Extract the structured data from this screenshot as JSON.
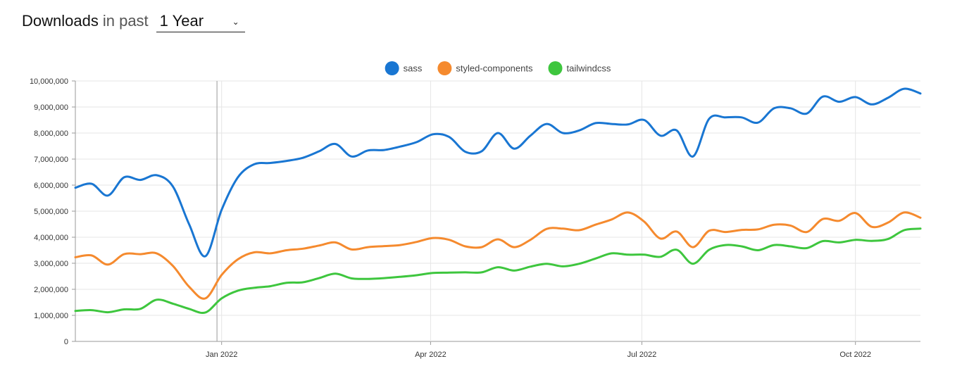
{
  "header": {
    "title": "Downloads",
    "subtitle": "in past",
    "period_selected": "1 Year"
  },
  "chart_data": {
    "type": "line",
    "title": "",
    "xlabel": "",
    "ylabel": "",
    "ylim": [
      0,
      10000000
    ],
    "y_ticks": [
      0,
      1000000,
      2000000,
      3000000,
      4000000,
      5000000,
      6000000,
      7000000,
      8000000,
      9000000,
      10000000
    ],
    "y_tick_labels": [
      "0",
      "1,000,000",
      "2,000,000",
      "3,000,000",
      "4,000,000",
      "5,000,000",
      "6,000,000",
      "7,000,000",
      "8,000,000",
      "9,000,000",
      "10,000,000"
    ],
    "xlim": [
      "2021-10-30",
      "2022-10-29"
    ],
    "x_ticks": [
      {
        "date": "2022-01-01",
        "label": "Jan 2022"
      },
      {
        "date": "2022-04-01",
        "label": "Apr 2022"
      },
      {
        "date": "2022-07-01",
        "label": "Jul 2022"
      },
      {
        "date": "2022-10-01",
        "label": "Oct 2022"
      }
    ],
    "grid": true,
    "legend_position": "top-center",
    "highlight_date": "2021-12-30",
    "series": [
      {
        "name": "sass",
        "color": "#1976d2",
        "points": [
          [
            "2021-10-30",
            5900000
          ],
          [
            "2021-11-06",
            6050000
          ],
          [
            "2021-11-13",
            5600000
          ],
          [
            "2021-11-20",
            6300000
          ],
          [
            "2021-11-27",
            6200000
          ],
          [
            "2021-12-04",
            6380000
          ],
          [
            "2021-12-11",
            5950000
          ],
          [
            "2021-12-18",
            4500000
          ],
          [
            "2021-12-25",
            3270000
          ],
          [
            "2022-01-01",
            5050000
          ],
          [
            "2022-01-08",
            6300000
          ],
          [
            "2022-01-15",
            6800000
          ],
          [
            "2022-01-22",
            6850000
          ],
          [
            "2022-01-29",
            6930000
          ],
          [
            "2022-02-05",
            7050000
          ],
          [
            "2022-02-12",
            7300000
          ],
          [
            "2022-02-19",
            7580000
          ],
          [
            "2022-02-26",
            7100000
          ],
          [
            "2022-03-05",
            7330000
          ],
          [
            "2022-03-12",
            7350000
          ],
          [
            "2022-03-19",
            7480000
          ],
          [
            "2022-03-26",
            7650000
          ],
          [
            "2022-04-02",
            7950000
          ],
          [
            "2022-04-09",
            7850000
          ],
          [
            "2022-04-16",
            7280000
          ],
          [
            "2022-04-23",
            7300000
          ],
          [
            "2022-04-30",
            8000000
          ],
          [
            "2022-05-07",
            7400000
          ],
          [
            "2022-05-14",
            7900000
          ],
          [
            "2022-05-21",
            8350000
          ],
          [
            "2022-05-28",
            8000000
          ],
          [
            "2022-06-04",
            8100000
          ],
          [
            "2022-06-11",
            8380000
          ],
          [
            "2022-06-18",
            8350000
          ],
          [
            "2022-06-25",
            8330000
          ],
          [
            "2022-07-02",
            8500000
          ],
          [
            "2022-07-09",
            7900000
          ],
          [
            "2022-07-16",
            8100000
          ],
          [
            "2022-07-23",
            7100000
          ],
          [
            "2022-07-30",
            8550000
          ],
          [
            "2022-08-06",
            8600000
          ],
          [
            "2022-08-13",
            8600000
          ],
          [
            "2022-08-20",
            8400000
          ],
          [
            "2022-08-27",
            8950000
          ],
          [
            "2022-09-03",
            8950000
          ],
          [
            "2022-09-10",
            8750000
          ],
          [
            "2022-09-17",
            9400000
          ],
          [
            "2022-09-24",
            9200000
          ],
          [
            "2022-10-01",
            9380000
          ],
          [
            "2022-10-08",
            9100000
          ],
          [
            "2022-10-15",
            9350000
          ],
          [
            "2022-10-22",
            9700000
          ],
          [
            "2022-10-29",
            9520000
          ]
        ]
      },
      {
        "name": "styled-components",
        "color": "#f58a2e",
        "points": [
          [
            "2021-10-30",
            3230000
          ],
          [
            "2021-11-06",
            3300000
          ],
          [
            "2021-11-13",
            2950000
          ],
          [
            "2021-11-20",
            3350000
          ],
          [
            "2021-11-27",
            3350000
          ],
          [
            "2021-12-04",
            3380000
          ],
          [
            "2021-12-11",
            2900000
          ],
          [
            "2021-12-18",
            2100000
          ],
          [
            "2021-12-25",
            1650000
          ],
          [
            "2022-01-01",
            2550000
          ],
          [
            "2022-01-08",
            3150000
          ],
          [
            "2022-01-15",
            3420000
          ],
          [
            "2022-01-22",
            3380000
          ],
          [
            "2022-01-29",
            3500000
          ],
          [
            "2022-02-05",
            3560000
          ],
          [
            "2022-02-12",
            3680000
          ],
          [
            "2022-02-19",
            3800000
          ],
          [
            "2022-02-26",
            3530000
          ],
          [
            "2022-03-05",
            3620000
          ],
          [
            "2022-03-12",
            3660000
          ],
          [
            "2022-03-19",
            3700000
          ],
          [
            "2022-03-26",
            3820000
          ],
          [
            "2022-04-02",
            3970000
          ],
          [
            "2022-04-09",
            3900000
          ],
          [
            "2022-04-16",
            3650000
          ],
          [
            "2022-04-23",
            3620000
          ],
          [
            "2022-04-30",
            3920000
          ],
          [
            "2022-05-07",
            3620000
          ],
          [
            "2022-05-14",
            3900000
          ],
          [
            "2022-05-21",
            4320000
          ],
          [
            "2022-05-28",
            4330000
          ],
          [
            "2022-06-04",
            4270000
          ],
          [
            "2022-06-11",
            4480000
          ],
          [
            "2022-06-18",
            4680000
          ],
          [
            "2022-06-25",
            4950000
          ],
          [
            "2022-07-02",
            4600000
          ],
          [
            "2022-07-09",
            3950000
          ],
          [
            "2022-07-16",
            4220000
          ],
          [
            "2022-07-23",
            3620000
          ],
          [
            "2022-07-30",
            4250000
          ],
          [
            "2022-08-06",
            4200000
          ],
          [
            "2022-08-13",
            4280000
          ],
          [
            "2022-08-20",
            4300000
          ],
          [
            "2022-08-27",
            4480000
          ],
          [
            "2022-09-03",
            4450000
          ],
          [
            "2022-09-10",
            4200000
          ],
          [
            "2022-09-17",
            4700000
          ],
          [
            "2022-09-24",
            4630000
          ],
          [
            "2022-10-01",
            4930000
          ],
          [
            "2022-10-08",
            4400000
          ],
          [
            "2022-10-15",
            4560000
          ],
          [
            "2022-10-22",
            4950000
          ],
          [
            "2022-10-29",
            4750000
          ]
        ]
      },
      {
        "name": "tailwindcss",
        "color": "#3ec63e",
        "points": [
          [
            "2021-10-30",
            1170000
          ],
          [
            "2021-11-06",
            1200000
          ],
          [
            "2021-11-13",
            1120000
          ],
          [
            "2021-11-20",
            1230000
          ],
          [
            "2021-11-27",
            1250000
          ],
          [
            "2021-12-04",
            1600000
          ],
          [
            "2021-12-11",
            1450000
          ],
          [
            "2021-12-18",
            1250000
          ],
          [
            "2021-12-25",
            1110000
          ],
          [
            "2022-01-01",
            1650000
          ],
          [
            "2022-01-08",
            1950000
          ],
          [
            "2022-01-15",
            2060000
          ],
          [
            "2022-01-22",
            2120000
          ],
          [
            "2022-01-29",
            2250000
          ],
          [
            "2022-02-05",
            2270000
          ],
          [
            "2022-02-12",
            2430000
          ],
          [
            "2022-02-19",
            2600000
          ],
          [
            "2022-02-26",
            2420000
          ],
          [
            "2022-03-05",
            2400000
          ],
          [
            "2022-03-12",
            2430000
          ],
          [
            "2022-03-19",
            2480000
          ],
          [
            "2022-03-26",
            2540000
          ],
          [
            "2022-04-02",
            2630000
          ],
          [
            "2022-04-09",
            2640000
          ],
          [
            "2022-04-16",
            2650000
          ],
          [
            "2022-04-23",
            2650000
          ],
          [
            "2022-04-30",
            2850000
          ],
          [
            "2022-05-07",
            2720000
          ],
          [
            "2022-05-14",
            2870000
          ],
          [
            "2022-05-21",
            2980000
          ],
          [
            "2022-05-28",
            2880000
          ],
          [
            "2022-06-04",
            2980000
          ],
          [
            "2022-06-11",
            3180000
          ],
          [
            "2022-06-18",
            3380000
          ],
          [
            "2022-06-25",
            3330000
          ],
          [
            "2022-07-02",
            3330000
          ],
          [
            "2022-07-09",
            3250000
          ],
          [
            "2022-07-16",
            3520000
          ],
          [
            "2022-07-23",
            2980000
          ],
          [
            "2022-07-30",
            3520000
          ],
          [
            "2022-08-06",
            3700000
          ],
          [
            "2022-08-13",
            3650000
          ],
          [
            "2022-08-20",
            3500000
          ],
          [
            "2022-08-27",
            3700000
          ],
          [
            "2022-09-03",
            3650000
          ],
          [
            "2022-09-10",
            3580000
          ],
          [
            "2022-09-17",
            3850000
          ],
          [
            "2022-09-24",
            3800000
          ],
          [
            "2022-10-01",
            3900000
          ],
          [
            "2022-10-08",
            3860000
          ],
          [
            "2022-10-15",
            3930000
          ],
          [
            "2022-10-22",
            4270000
          ],
          [
            "2022-10-29",
            4330000
          ]
        ]
      }
    ]
  }
}
